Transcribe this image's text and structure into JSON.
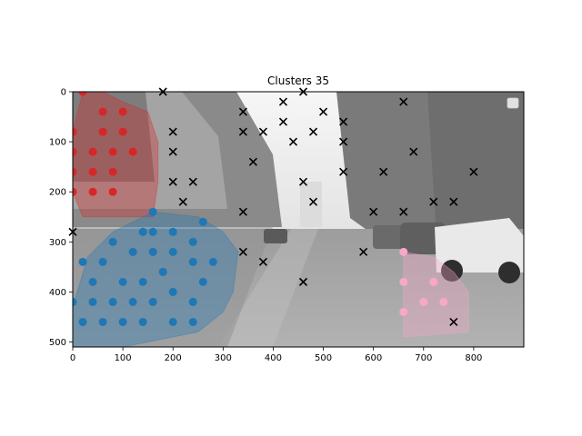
{
  "chart_data": {
    "type": "scatter",
    "title": "Clusters 35",
    "xlabel": "",
    "ylabel": "",
    "xlim": [
      0,
      900
    ],
    "ylim": [
      510,
      0
    ],
    "y_inverted": true,
    "xticks": [
      "0",
      "100",
      "200",
      "300",
      "400",
      "500",
      "600",
      "700",
      "800"
    ],
    "yticks": [
      "0",
      "100",
      "200",
      "300",
      "400",
      "500"
    ],
    "background": "grayscale street photograph",
    "legend": "top-right, empty",
    "grid": false,
    "colors": {
      "red": "#d62728",
      "blue": "#1f77b4",
      "pink": "#f7a8c8",
      "noise": "#000000"
    },
    "clusters": [
      {
        "color": "red",
        "hull": [
          [
            20,
            0
          ],
          [
            60,
            0
          ],
          [
            100,
            20
          ],
          [
            150,
            40
          ],
          [
            170,
            100
          ],
          [
            170,
            180
          ],
          [
            160,
            250
          ],
          [
            20,
            250
          ],
          [
            0,
            200
          ],
          [
            0,
            80
          ]
        ],
        "points": [
          [
            20,
            0
          ],
          [
            0,
            80
          ],
          [
            0,
            120
          ],
          [
            0,
            160
          ],
          [
            0,
            200
          ],
          [
            60,
            40
          ],
          [
            100,
            40
          ],
          [
            60,
            80
          ],
          [
            100,
            80
          ],
          [
            40,
            120
          ],
          [
            80,
            120
          ],
          [
            120,
            120
          ],
          [
            40,
            160
          ],
          [
            80,
            160
          ],
          [
            40,
            200
          ],
          [
            80,
            200
          ]
        ]
      },
      {
        "color": "blue",
        "hull": [
          [
            160,
            240
          ],
          [
            250,
            250
          ],
          [
            300,
            280
          ],
          [
            330,
            320
          ],
          [
            320,
            400
          ],
          [
            300,
            440
          ],
          [
            250,
            480
          ],
          [
            100,
            510
          ],
          [
            0,
            510
          ],
          [
            0,
            430
          ],
          [
            30,
            330
          ],
          [
            80,
            280
          ]
        ],
        "points": [
          [
            160,
            240
          ],
          [
            260,
            260
          ],
          [
            140,
            280
          ],
          [
            160,
            280
          ],
          [
            200,
            280
          ],
          [
            80,
            300
          ],
          [
            240,
            300
          ],
          [
            20,
            340
          ],
          [
            60,
            340
          ],
          [
            120,
            320
          ],
          [
            160,
            320
          ],
          [
            200,
            320
          ],
          [
            240,
            340
          ],
          [
            280,
            340
          ],
          [
            180,
            360
          ],
          [
            40,
            380
          ],
          [
            100,
            380
          ],
          [
            140,
            380
          ],
          [
            260,
            380
          ],
          [
            200,
            400
          ],
          [
            0,
            420
          ],
          [
            40,
            420
          ],
          [
            80,
            420
          ],
          [
            120,
            420
          ],
          [
            160,
            420
          ],
          [
            240,
            420
          ],
          [
            20,
            460
          ],
          [
            60,
            460
          ],
          [
            100,
            460
          ],
          [
            140,
            460
          ],
          [
            200,
            460
          ],
          [
            240,
            460
          ]
        ]
      },
      {
        "color": "pink",
        "hull": [
          [
            660,
            320
          ],
          [
            720,
            330
          ],
          [
            760,
            360
          ],
          [
            790,
            400
          ],
          [
            790,
            480
          ],
          [
            660,
            490
          ]
        ],
        "points": [
          [
            660,
            320
          ],
          [
            660,
            380
          ],
          [
            720,
            380
          ],
          [
            700,
            420
          ],
          [
            740,
            420
          ],
          [
            660,
            440
          ]
        ]
      }
    ],
    "noise_points": [
      [
        180,
        0
      ],
      [
        460,
        0
      ],
      [
        420,
        20
      ],
      [
        660,
        20
      ],
      [
        340,
        40
      ],
      [
        500,
        40
      ],
      [
        420,
        60
      ],
      [
        540,
        60
      ],
      [
        200,
        80
      ],
      [
        340,
        80
      ],
      [
        380,
        80
      ],
      [
        480,
        80
      ],
      [
        440,
        100
      ],
      [
        540,
        100
      ],
      [
        200,
        120
      ],
      [
        680,
        120
      ],
      [
        360,
        140
      ],
      [
        540,
        160
      ],
      [
        620,
        160
      ],
      [
        800,
        160
      ],
      [
        200,
        180
      ],
      [
        240,
        180
      ],
      [
        460,
        180
      ],
      [
        220,
        220
      ],
      [
        480,
        220
      ],
      [
        720,
        220
      ],
      [
        760,
        220
      ],
      [
        340,
        240
      ],
      [
        600,
        240
      ],
      [
        660,
        240
      ],
      [
        0,
        280
      ],
      [
        340,
        320
      ],
      [
        580,
        320
      ],
      [
        380,
        340
      ],
      [
        460,
        380
      ],
      [
        760,
        460
      ]
    ]
  }
}
